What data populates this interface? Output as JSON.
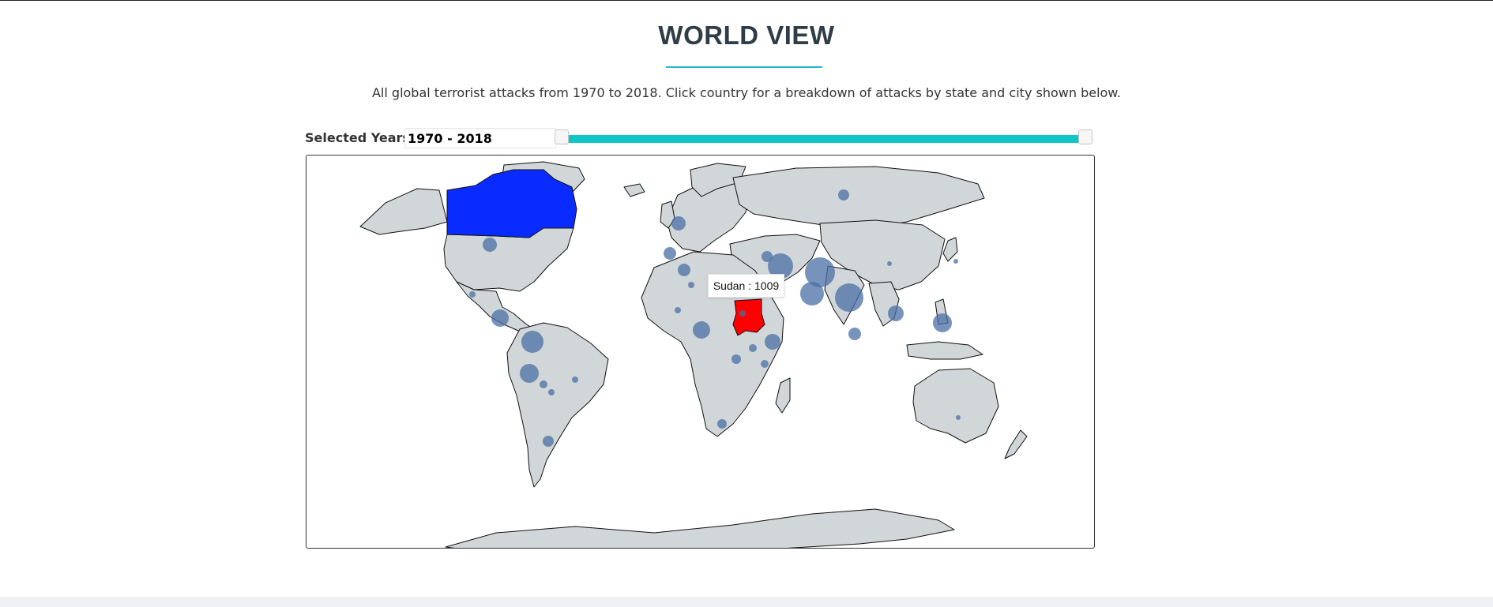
{
  "header": {
    "title": "WORLD VIEW",
    "subtitle": "All global terrorist attacks from 1970 to 2018. Click country for a breakdown of attacks by state and city shown below."
  },
  "year_filter": {
    "label": "Selected Years:",
    "value": "1970 - 2018",
    "range_start": 1970,
    "range_end": 2018
  },
  "map": {
    "projection": "equirectangular world",
    "highlighted_countries": [
      {
        "name": "Canada",
        "state": "selected",
        "color": "#0a2bff"
      },
      {
        "name": "Sudan",
        "state": "hovered",
        "color": "#ff0000"
      }
    ],
    "land_color": "#d1d6d8",
    "bubble_color": "#4a6fa5",
    "tooltip": {
      "country": "Sudan",
      "separator": " : ",
      "value": "1009",
      "text": "Sudan : 1009"
    }
  },
  "colors": {
    "title": "#2f3e46",
    "accent": "#28b6d6",
    "slider": "#0fc5c5"
  }
}
